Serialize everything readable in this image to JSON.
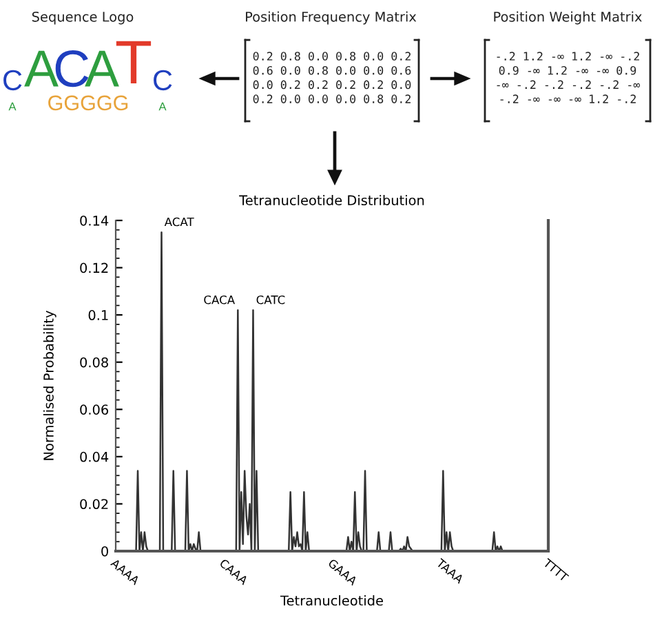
{
  "chart_data": {
    "type": "line",
    "title": "Tetranucleotide Distribution",
    "xlabel": "Tetranucleotide",
    "ylabel": "Normalised Probability",
    "categories": [
      "AAAA",
      null,
      null,
      null,
      null,
      null,
      null,
      null,
      null,
      null,
      null,
      null,
      null,
      null,
      null,
      null,
      null,
      null,
      null,
      null,
      null,
      null,
      null,
      null,
      null,
      null,
      null,
      null,
      null,
      null,
      null,
      null,
      null,
      null,
      null,
      null,
      null,
      null,
      null,
      null,
      null,
      null,
      null,
      null,
      null,
      null,
      null,
      null,
      null,
      null,
      null,
      null,
      null,
      null,
      null,
      null,
      null,
      null,
      null,
      null,
      null,
      null,
      null,
      null,
      "CAAA",
      null,
      null,
      null,
      null,
      null,
      null,
      null,
      null,
      null,
      null,
      null,
      null,
      null,
      null,
      null,
      null,
      null,
      null,
      null,
      null,
      null,
      null,
      null,
      null,
      null,
      null,
      null,
      null,
      null,
      null,
      null,
      null,
      null,
      null,
      null,
      null,
      null,
      null,
      null,
      null,
      null,
      null,
      null,
      null,
      null,
      null,
      null,
      null,
      null,
      null,
      null,
      null,
      null,
      null,
      null,
      null,
      null,
      null,
      null,
      null,
      null,
      null,
      null,
      "GAAA",
      null,
      null,
      null,
      null,
      null,
      null,
      null,
      null,
      null,
      null,
      null,
      null,
      null,
      null,
      null,
      null,
      null,
      null,
      null,
      null,
      null,
      null,
      null,
      null,
      null,
      null,
      null,
      null,
      null,
      null,
      null,
      null,
      null,
      null,
      null,
      null,
      null,
      null,
      null,
      null,
      null,
      null,
      null,
      null,
      null,
      null,
      null,
      null,
      null,
      null,
      null,
      null,
      null,
      null,
      null,
      null,
      null,
      null,
      null,
      null,
      null,
      null,
      null,
      "TAAA",
      null,
      null,
      null,
      null,
      null,
      null,
      null,
      null,
      null,
      null,
      null,
      null,
      null,
      null,
      null,
      null,
      null,
      null,
      null,
      null,
      null,
      null,
      null,
      null,
      null,
      null,
      null,
      null,
      null,
      null,
      null,
      null,
      null,
      null,
      null,
      null,
      null,
      null,
      null,
      null,
      null,
      null,
      null,
      null,
      null,
      null,
      null,
      null,
      null,
      null,
      null,
      null,
      null,
      null,
      null,
      null,
      null,
      null,
      null,
      null,
      null,
      null,
      "TTTT"
    ],
    "series": [
      {
        "color": "#333333",
        "values": [
          0,
          0,
          0,
          0,
          0,
          0,
          0,
          0,
          0,
          0,
          0,
          0,
          0,
          0.034,
          0,
          0.008,
          0,
          0.008,
          0.002,
          0,
          0,
          0,
          0,
          0,
          0,
          0,
          0,
          0.135,
          0,
          0,
          0,
          0,
          0,
          0,
          0.034,
          0,
          0,
          0,
          0,
          0,
          0,
          0,
          0.034,
          0,
          0.003,
          0,
          0.003,
          0.001,
          0,
          0.008,
          0,
          0,
          0,
          0,
          0,
          0,
          0,
          0,
          0,
          0,
          0,
          0,
          0,
          0,
          0,
          0,
          0,
          0,
          0,
          0,
          0,
          0,
          0.102,
          0,
          0.025,
          0.003,
          0.034,
          0.015,
          0.007,
          0.02,
          0,
          0.102,
          0,
          0.034,
          0,
          0,
          0,
          0,
          0,
          0,
          0,
          0,
          0,
          0,
          0,
          0,
          0,
          0,
          0,
          0,
          0,
          0,
          0,
          0.025,
          0,
          0.006,
          0.002,
          0.008,
          0.002,
          0.003,
          0,
          0.025,
          0,
          0.008,
          0,
          0,
          0,
          0,
          0,
          0,
          0,
          0,
          0,
          0,
          0,
          0,
          0,
          0,
          0,
          0,
          0,
          0,
          0,
          0,
          0,
          0,
          0,
          0.006,
          0,
          0.004,
          0,
          0.025,
          0,
          0.008,
          0.002,
          0,
          0,
          0.034,
          0,
          0,
          0,
          0,
          0,
          0,
          0,
          0.008,
          0,
          0,
          0,
          0,
          0,
          0,
          0.008,
          0,
          0,
          0,
          0,
          0,
          0.001,
          0,
          0.002,
          0,
          0.006,
          0.002,
          0.001,
          0,
          0,
          0,
          0,
          0,
          0,
          0,
          0,
          0,
          0,
          0,
          0,
          0,
          0,
          0,
          0,
          0,
          0,
          0.034,
          0,
          0.008,
          0,
          0.008,
          0.002,
          0,
          0,
          0,
          0,
          0,
          0,
          0,
          0,
          0,
          0,
          0,
          0,
          0,
          0,
          0,
          0,
          0,
          0,
          0,
          0,
          0,
          0,
          0,
          0,
          0.008,
          0,
          0.002,
          0,
          0.002,
          0,
          0,
          0,
          0,
          0,
          0,
          0,
          0,
          0,
          0,
          0,
          0,
          0,
          0,
          0,
          0,
          0,
          0,
          0,
          0,
          0,
          0,
          0,
          0,
          0,
          0,
          0,
          0
        ]
      }
    ],
    "ylim": [
      0,
      0.14
    ],
    "yticks": [
      0,
      0.02,
      0.04,
      0.06,
      0.08,
      0.1,
      0.12,
      0.14
    ],
    "grid": false,
    "legend": false,
    "marker": "none",
    "line_style": "solid",
    "annotations": [
      "ACAT",
      "CACA",
      "CATC",
      "Sequence Logo",
      "Position Frequency Matrix",
      "Position Weight Matrix",
      "0.2 0.8 0.0 0.8 0.0 0.2\n0.6 0.0 0.8 0.0 0.0 0.6\n0.0 0.2 0.2 0.2 0.2 0.0\n0.2 0.0 0.0 0.0 0.8 0.2",
      "-.2 1.2 -∞ 1.2 -∞ -.2\n0.9 -∞ 1.2 -∞ -∞ 0.9\n-∞ -.2 -.2 -.2 -.2 -∞\n-.2 -∞ -∞ -∞ 1.2 -.2",
      "C",
      "A",
      "C",
      "A",
      "T",
      "C",
      "GGGGG",
      "A",
      "A"
    ]
  }
}
